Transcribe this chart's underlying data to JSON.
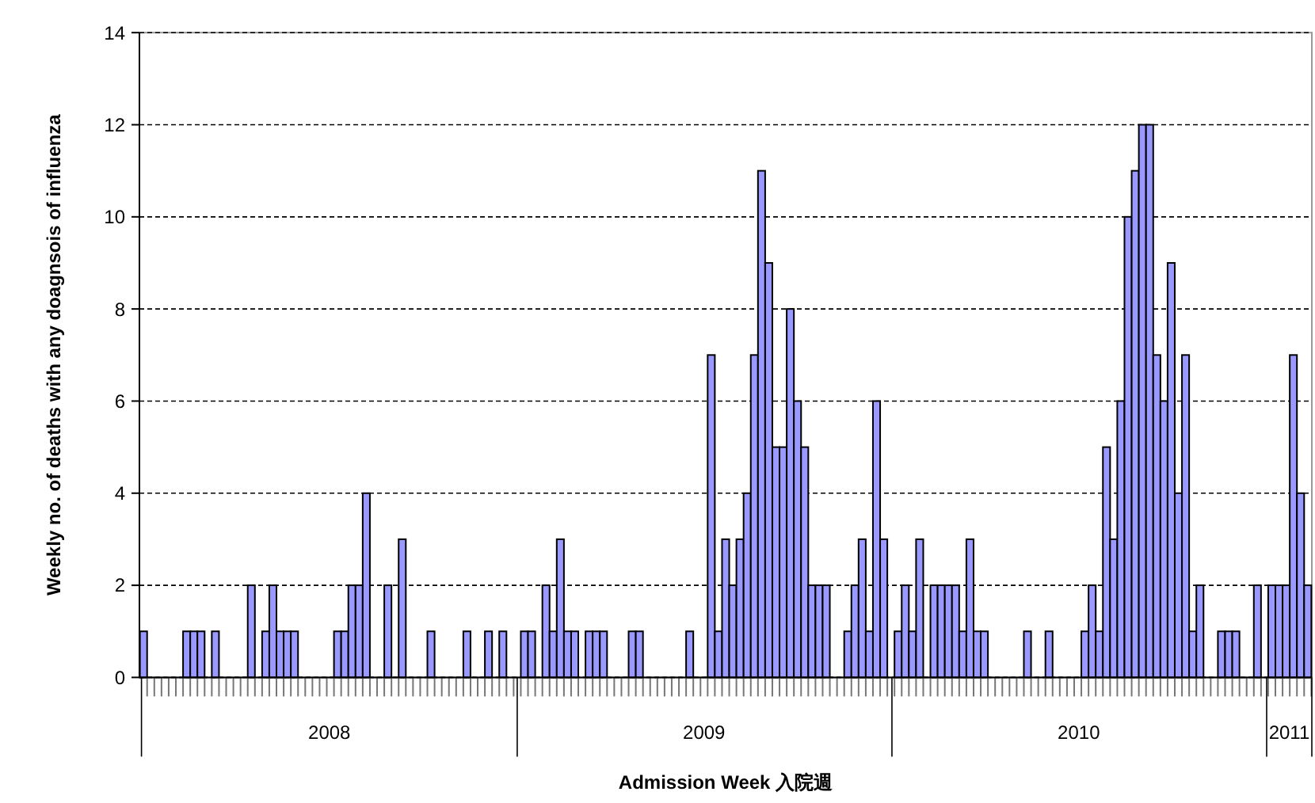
{
  "chart_data": {
    "type": "bar",
    "xlabel": "Admission Week 入院週",
    "ylabel": "Weekly no. of deaths with any doagnsois of influenza",
    "x": [
      "2008-01-03",
      "2008-01-10",
      "2008-01-17",
      "2008-01-24",
      "2008-01-31",
      "2008-02-07",
      "2008-02-14",
      "2008-02-21",
      "2008-02-28",
      "2008-03-06",
      "2008-03-13",
      "2008-03-20",
      "2008-03-27",
      "2008-04-03",
      "2008-04-10",
      "2008-04-17",
      "2008-04-24",
      "2008-05-01",
      "2008-05-08",
      "2008-05-15",
      "2008-05-22",
      "2008-05-29",
      "2008-06-05",
      "2008-06-12",
      "2008-06-19",
      "2008-06-26",
      "2008-07-03",
      "2008-07-10",
      "2008-07-17",
      "2008-07-24",
      "2008-07-31",
      "2008-08-07",
      "2008-08-14",
      "2008-08-21",
      "2008-08-28",
      "2008-09-04",
      "2008-09-11",
      "2008-09-18",
      "2008-09-25",
      "2008-10-02",
      "2008-10-09",
      "2008-10-16",
      "2008-10-23",
      "2008-10-30",
      "2008-11-06",
      "2008-11-13",
      "2008-11-20",
      "2008-11-27",
      "2008-12-04",
      "2008-12-11",
      "2008-12-18",
      "2008-12-25",
      "2009-01-01",
      "2009-01-08",
      "2009-01-15",
      "2009-01-22",
      "2009-01-29",
      "2009-02-05",
      "2009-02-12",
      "2009-02-19",
      "2009-02-26",
      "2009-03-05",
      "2009-03-12",
      "2009-03-19",
      "2009-03-26",
      "2009-04-02",
      "2009-04-09",
      "2009-04-16",
      "2009-04-23",
      "2009-04-30",
      "2009-05-07",
      "2009-05-14",
      "2009-05-21",
      "2009-05-28",
      "2009-06-04",
      "2009-06-11",
      "2009-06-18",
      "2009-06-25",
      "2009-07-02",
      "2009-07-09",
      "2009-07-16",
      "2009-07-23",
      "2009-07-30",
      "2009-08-06",
      "2009-08-13",
      "2009-08-20",
      "2009-08-27",
      "2009-09-03",
      "2009-09-10",
      "2009-09-17",
      "2009-09-24",
      "2009-10-01",
      "2009-10-08",
      "2009-10-15",
      "2009-10-22",
      "2009-10-29",
      "2009-11-05",
      "2009-11-12",
      "2009-11-19",
      "2009-11-26",
      "2009-12-03",
      "2009-12-10",
      "2009-12-17",
      "2009-12-24",
      "2009-12-31",
      "2010-01-07",
      "2010-01-14",
      "2010-01-21",
      "2010-01-28",
      "2010-02-04",
      "2010-02-11",
      "2010-02-18",
      "2010-02-25",
      "2010-03-04",
      "2010-03-11",
      "2010-03-18",
      "2010-03-25",
      "2010-04-01",
      "2010-04-08",
      "2010-04-15",
      "2010-04-22",
      "2010-04-29",
      "2010-05-06",
      "2010-05-13",
      "2010-05-20",
      "2010-05-27",
      "2010-06-03",
      "2010-06-10",
      "2010-06-17",
      "2010-06-24",
      "2010-07-01",
      "2010-07-08",
      "2010-07-15",
      "2010-07-22",
      "2010-07-29",
      "2010-08-05",
      "2010-08-12",
      "2010-08-19",
      "2010-08-26",
      "2010-09-02",
      "2010-09-09",
      "2010-09-16",
      "2010-09-23",
      "2010-09-30",
      "2010-10-07",
      "2010-10-14",
      "2010-10-21",
      "2010-10-28",
      "2010-11-04",
      "2010-11-11",
      "2010-11-18",
      "2010-11-25",
      "2010-12-02",
      "2010-12-09",
      "2010-12-16",
      "2010-12-23",
      "2010-12-30",
      "2011-01-06",
      "2011-01-13",
      "2011-01-20",
      "2011-01-27",
      "2011-02-03",
      "2011-02-10"
    ],
    "values": [
      1,
      0,
      0,
      0,
      0,
      0,
      1,
      1,
      1,
      0,
      1,
      0,
      0,
      0,
      0,
      2,
      0,
      1,
      2,
      1,
      1,
      1,
      0,
      0,
      0,
      0,
      0,
      1,
      1,
      2,
      2,
      4,
      0,
      0,
      2,
      0,
      3,
      0,
      0,
      0,
      1,
      0,
      0,
      0,
      0,
      1,
      0,
      0,
      1,
      0,
      1,
      0,
      0,
      1,
      1,
      0,
      2,
      1,
      3,
      1,
      1,
      0,
      1,
      1,
      1,
      0,
      0,
      0,
      1,
      1,
      0,
      0,
      0,
      0,
      0,
      0,
      1,
      0,
      0,
      7,
      1,
      3,
      2,
      3,
      4,
      7,
      11,
      9,
      5,
      5,
      8,
      6,
      5,
      2,
      2,
      2,
      0,
      0,
      1,
      2,
      3,
      1,
      6,
      3,
      0,
      1,
      2,
      1,
      3,
      0,
      2,
      2,
      2,
      2,
      1,
      3,
      1,
      1,
      0,
      0,
      0,
      0,
      0,
      1,
      0,
      0,
      1,
      0,
      0,
      0,
      0,
      1,
      2,
      1,
      5,
      3,
      6,
      10,
      11,
      12,
      12,
      7,
      6,
      9,
      4,
      7,
      1,
      2,
      0,
      0,
      1,
      1,
      1,
      0,
      0,
      2,
      0,
      2,
      2,
      2,
      7,
      4,
      2
    ],
    "color": "#9999ff",
    "xlim": [
      "2007-12-30",
      "2011-02-14"
    ],
    "xticks": [
      {
        "value": "2008-01-01",
        "label": null
      },
      {
        "value": "2008-07-02",
        "label": "2008"
      },
      {
        "value": "2009-01-01",
        "label": null
      },
      {
        "value": "2009-07-02",
        "label": "2009"
      },
      {
        "value": "2010-01-01",
        "label": null
      },
      {
        "value": "2010-07-02",
        "label": "2010"
      },
      {
        "value": "2011-01-01",
        "label": null
      },
      {
        "value": "2011-01-23",
        "label": "2011"
      },
      {
        "value": "2011-02-14",
        "label": null
      }
    ],
    "ylim": [
      0,
      14
    ],
    "yticks": [
      0,
      2,
      4,
      6,
      8,
      10,
      12,
      14
    ],
    "grid": "y"
  }
}
